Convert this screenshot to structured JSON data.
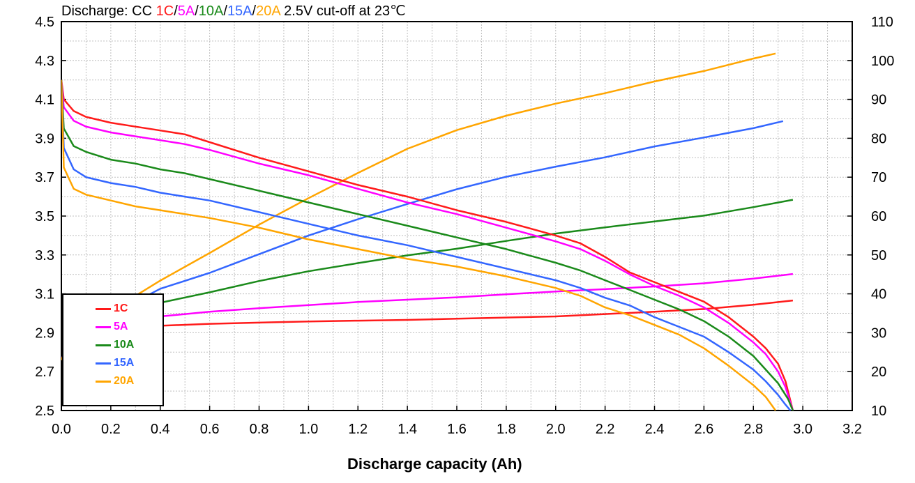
{
  "title": {
    "prefix": "Discharge: CC ",
    "rates": [
      {
        "label": "1C",
        "color": "#ff1a1a"
      },
      {
        "label": "5A",
        "color": "#ff00ff"
      },
      {
        "label": "10A",
        "color": "#1a8a1a"
      },
      {
        "label": "15A",
        "color": "#3366ff"
      },
      {
        "label": "20A",
        "color": "#ffa500"
      }
    ],
    "suffix": " 2.5V cut-off at 23℃"
  },
  "chart_data": {
    "type": "line",
    "title": "Discharge: CC 1C/5A/10A/15A/20A 2.5V cut-off at 23℃",
    "xlabel": "Discharge capacity (Ah)",
    "ylabel": "",
    "y2label": "",
    "xlim": [
      0.0,
      3.2
    ],
    "ylim": [
      2.5,
      4.5
    ],
    "y2lim": [
      10,
      110
    ],
    "x_ticks": [
      "0.0",
      "0.2",
      "0.4",
      "0.6",
      "0.8",
      "1.0",
      "1.2",
      "1.4",
      "1.6",
      "1.8",
      "2.0",
      "2.2",
      "2.4",
      "2.6",
      "2.8",
      "3.0",
      "3.2"
    ],
    "y_ticks": [
      "2.5",
      "2.7",
      "2.9",
      "3.1",
      "3.3",
      "3.5",
      "3.7",
      "3.9",
      "4.1",
      "4.3",
      "4.5"
    ],
    "y2_ticks": [
      "10",
      "20",
      "30",
      "40",
      "50",
      "60",
      "70",
      "80",
      "90",
      "100",
      "110"
    ],
    "grid": true,
    "legend_position": "bottom-left",
    "voltage_series": [
      {
        "name": "1C",
        "color": "#ff1a1a",
        "points": [
          [
            0,
            4.2
          ],
          [
            0.01,
            4.1
          ],
          [
            0.05,
            4.04
          ],
          [
            0.1,
            4.01
          ],
          [
            0.2,
            3.98
          ],
          [
            0.3,
            3.96
          ],
          [
            0.4,
            3.94
          ],
          [
            0.5,
            3.92
          ],
          [
            0.6,
            3.88
          ],
          [
            0.8,
            3.8
          ],
          [
            1.0,
            3.73
          ],
          [
            1.2,
            3.66
          ],
          [
            1.4,
            3.6
          ],
          [
            1.6,
            3.53
          ],
          [
            1.8,
            3.47
          ],
          [
            2.0,
            3.4
          ],
          [
            2.1,
            3.36
          ],
          [
            2.2,
            3.29
          ],
          [
            2.3,
            3.21
          ],
          [
            2.4,
            3.16
          ],
          [
            2.5,
            3.11
          ],
          [
            2.6,
            3.06
          ],
          [
            2.7,
            2.98
          ],
          [
            2.8,
            2.88
          ],
          [
            2.85,
            2.82
          ],
          [
            2.9,
            2.74
          ],
          [
            2.93,
            2.65
          ],
          [
            2.96,
            2.5
          ]
        ]
      },
      {
        "name": "5A",
        "color": "#ff00ff",
        "points": [
          [
            0,
            4.2
          ],
          [
            0.01,
            4.06
          ],
          [
            0.05,
            3.99
          ],
          [
            0.1,
            3.96
          ],
          [
            0.2,
            3.93
          ],
          [
            0.3,
            3.91
          ],
          [
            0.4,
            3.89
          ],
          [
            0.5,
            3.87
          ],
          [
            0.6,
            3.84
          ],
          [
            0.8,
            3.77
          ],
          [
            1.0,
            3.71
          ],
          [
            1.2,
            3.64
          ],
          [
            1.4,
            3.57
          ],
          [
            1.6,
            3.51
          ],
          [
            1.8,
            3.44
          ],
          [
            2.0,
            3.37
          ],
          [
            2.1,
            3.33
          ],
          [
            2.2,
            3.27
          ],
          [
            2.3,
            3.2
          ],
          [
            2.4,
            3.14
          ],
          [
            2.5,
            3.09
          ],
          [
            2.6,
            3.03
          ],
          [
            2.7,
            2.95
          ],
          [
            2.8,
            2.85
          ],
          [
            2.85,
            2.79
          ],
          [
            2.9,
            2.7
          ],
          [
            2.93,
            2.62
          ],
          [
            2.96,
            2.5
          ]
        ]
      },
      {
        "name": "10A",
        "color": "#1a8a1a",
        "points": [
          [
            0,
            4.2
          ],
          [
            0.01,
            3.95
          ],
          [
            0.05,
            3.86
          ],
          [
            0.1,
            3.83
          ],
          [
            0.2,
            3.79
          ],
          [
            0.3,
            3.77
          ],
          [
            0.4,
            3.74
          ],
          [
            0.5,
            3.72
          ],
          [
            0.6,
            3.69
          ],
          [
            0.8,
            3.63
          ],
          [
            1.0,
            3.57
          ],
          [
            1.2,
            3.51
          ],
          [
            1.4,
            3.45
          ],
          [
            1.6,
            3.39
          ],
          [
            1.8,
            3.33
          ],
          [
            2.0,
            3.26
          ],
          [
            2.1,
            3.22
          ],
          [
            2.2,
            3.17
          ],
          [
            2.3,
            3.12
          ],
          [
            2.4,
            3.07
          ],
          [
            2.5,
            3.02
          ],
          [
            2.6,
            2.96
          ],
          [
            2.7,
            2.88
          ],
          [
            2.8,
            2.78
          ],
          [
            2.85,
            2.71
          ],
          [
            2.9,
            2.64
          ],
          [
            2.94,
            2.56
          ],
          [
            2.96,
            2.5
          ]
        ]
      },
      {
        "name": "15A",
        "color": "#3366ff",
        "points": [
          [
            0,
            4.2
          ],
          [
            0.01,
            3.85
          ],
          [
            0.05,
            3.74
          ],
          [
            0.1,
            3.7
          ],
          [
            0.2,
            3.67
          ],
          [
            0.3,
            3.65
          ],
          [
            0.4,
            3.62
          ],
          [
            0.5,
            3.6
          ],
          [
            0.6,
            3.58
          ],
          [
            0.8,
            3.52
          ],
          [
            1.0,
            3.46
          ],
          [
            1.2,
            3.4
          ],
          [
            1.4,
            3.35
          ],
          [
            1.6,
            3.29
          ],
          [
            1.8,
            3.23
          ],
          [
            2.0,
            3.17
          ],
          [
            2.1,
            3.13
          ],
          [
            2.2,
            3.08
          ],
          [
            2.3,
            3.04
          ],
          [
            2.4,
            2.98
          ],
          [
            2.5,
            2.93
          ],
          [
            2.6,
            2.88
          ],
          [
            2.7,
            2.8
          ],
          [
            2.8,
            2.71
          ],
          [
            2.85,
            2.65
          ],
          [
            2.9,
            2.58
          ],
          [
            2.93,
            2.53
          ],
          [
            2.95,
            2.5
          ]
        ]
      },
      {
        "name": "20A",
        "color": "#ffa500",
        "points": [
          [
            0,
            4.2
          ],
          [
            0.01,
            3.75
          ],
          [
            0.05,
            3.64
          ],
          [
            0.1,
            3.61
          ],
          [
            0.2,
            3.58
          ],
          [
            0.3,
            3.55
          ],
          [
            0.4,
            3.53
          ],
          [
            0.5,
            3.51
          ],
          [
            0.6,
            3.49
          ],
          [
            0.8,
            3.44
          ],
          [
            1.0,
            3.38
          ],
          [
            1.2,
            3.33
          ],
          [
            1.4,
            3.28
          ],
          [
            1.6,
            3.24
          ],
          [
            1.8,
            3.19
          ],
          [
            2.0,
            3.13
          ],
          [
            2.1,
            3.09
          ],
          [
            2.2,
            3.03
          ],
          [
            2.3,
            2.99
          ],
          [
            2.4,
            2.94
          ],
          [
            2.5,
            2.89
          ],
          [
            2.6,
            2.82
          ],
          [
            2.7,
            2.73
          ],
          [
            2.8,
            2.63
          ],
          [
            2.85,
            2.57
          ],
          [
            2.89,
            2.5
          ]
        ]
      }
    ],
    "temperature_series": [
      {
        "name": "1C",
        "color": "#ff1a1a",
        "points": [
          [
            0,
            23
          ],
          [
            0.05,
            30
          ],
          [
            0.1,
            31
          ],
          [
            0.2,
            31.5
          ],
          [
            0.4,
            31.8
          ],
          [
            0.6,
            32.3
          ],
          [
            0.8,
            32.6
          ],
          [
            1.0,
            32.9
          ],
          [
            1.2,
            33.1
          ],
          [
            1.4,
            33.3
          ],
          [
            1.6,
            33.6
          ],
          [
            1.8,
            33.9
          ],
          [
            2.0,
            34.2
          ],
          [
            2.2,
            34.8
          ],
          [
            2.4,
            35.4
          ],
          [
            2.6,
            36.1
          ],
          [
            2.8,
            37.2
          ],
          [
            2.96,
            38.3
          ]
        ]
      },
      {
        "name": "5A",
        "color": "#ff00ff",
        "points": [
          [
            0,
            23
          ],
          [
            0.05,
            31
          ],
          [
            0.1,
            32.5
          ],
          [
            0.2,
            33.2
          ],
          [
            0.4,
            34.2
          ],
          [
            0.6,
            35.4
          ],
          [
            0.8,
            36.3
          ],
          [
            1.0,
            37.1
          ],
          [
            1.2,
            37.9
          ],
          [
            1.4,
            38.5
          ],
          [
            1.6,
            39.1
          ],
          [
            1.8,
            39.9
          ],
          [
            2.0,
            40.6
          ],
          [
            2.2,
            41.2
          ],
          [
            2.4,
            41.9
          ],
          [
            2.6,
            42.7
          ],
          [
            2.8,
            43.9
          ],
          [
            2.96,
            45.1
          ]
        ]
      },
      {
        "name": "10A",
        "color": "#1a8a1a",
        "points": [
          [
            0,
            23
          ],
          [
            0.05,
            30
          ],
          [
            0.1,
            33
          ],
          [
            0.2,
            35
          ],
          [
            0.3,
            36.5
          ],
          [
            0.4,
            37.7
          ],
          [
            0.6,
            40.4
          ],
          [
            0.8,
            43.3
          ],
          [
            1.0,
            45.8
          ],
          [
            1.2,
            47.9
          ],
          [
            1.4,
            49.9
          ],
          [
            1.6,
            51.6
          ],
          [
            1.8,
            53.6
          ],
          [
            2.0,
            55.5
          ],
          [
            2.2,
            57.1
          ],
          [
            2.4,
            58.6
          ],
          [
            2.6,
            60.1
          ],
          [
            2.8,
            62.3
          ],
          [
            2.96,
            64.2
          ]
        ]
      },
      {
        "name": "15A",
        "color": "#3366ff",
        "points": [
          [
            0,
            23
          ],
          [
            0.05,
            30
          ],
          [
            0.1,
            32
          ],
          [
            0.2,
            35
          ],
          [
            0.3,
            38
          ],
          [
            0.4,
            41.3
          ],
          [
            0.6,
            45.4
          ],
          [
            0.8,
            50.2
          ],
          [
            1.0,
            55.0
          ],
          [
            1.2,
            59.2
          ],
          [
            1.4,
            63.1
          ],
          [
            1.6,
            66.9
          ],
          [
            1.8,
            70.1
          ],
          [
            2.0,
            72.7
          ],
          [
            2.2,
            75.1
          ],
          [
            2.4,
            77.9
          ],
          [
            2.6,
            80.2
          ],
          [
            2.8,
            82.6
          ],
          [
            2.92,
            84.4
          ]
        ]
      },
      {
        "name": "20A",
        "color": "#ffa500",
        "points": [
          [
            0,
            23
          ],
          [
            0.05,
            30
          ],
          [
            0.1,
            32
          ],
          [
            0.2,
            35
          ],
          [
            0.3,
            39.5
          ],
          [
            0.4,
            43.4
          ],
          [
            0.6,
            50.5
          ],
          [
            0.8,
            57.8
          ],
          [
            1.0,
            64.6
          ],
          [
            1.2,
            71.1
          ],
          [
            1.4,
            77.3
          ],
          [
            1.6,
            82.1
          ],
          [
            1.8,
            85.8
          ],
          [
            2.0,
            88.9
          ],
          [
            2.2,
            91.6
          ],
          [
            2.4,
            94.6
          ],
          [
            2.6,
            97.3
          ],
          [
            2.8,
            100.5
          ],
          [
            2.89,
            101.8
          ]
        ]
      }
    ]
  }
}
